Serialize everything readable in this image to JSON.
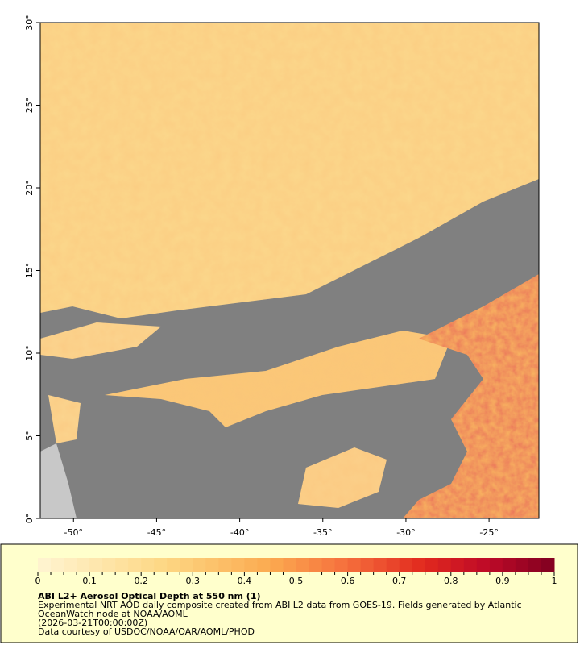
{
  "map": {
    "xlim": [
      -52,
      -22
    ],
    "ylim": [
      0,
      30
    ],
    "xticks": [
      {
        "value": -50,
        "label": "-50°"
      },
      {
        "value": -45,
        "label": "-45°"
      },
      {
        "value": -40,
        "label": "-40°"
      },
      {
        "value": -35,
        "label": "-35°"
      },
      {
        "value": -30,
        "label": "-30°"
      },
      {
        "value": -25,
        "label": "-25°"
      }
    ],
    "yticks": [
      {
        "value": 0,
        "label": "0°"
      },
      {
        "value": 5,
        "label": "5°"
      },
      {
        "value": 10,
        "label": "10°"
      },
      {
        "value": 15,
        "label": "15°"
      },
      {
        "value": 20,
        "label": "20°"
      },
      {
        "value": 25,
        "label": "25°"
      },
      {
        "value": 30,
        "label": "30°"
      }
    ]
  },
  "colorbar": {
    "range": [
      0,
      1
    ],
    "ticks": [
      0,
      0.1,
      0.2,
      0.3,
      0.4,
      0.5,
      0.6,
      0.7,
      0.8,
      0.9,
      1
    ]
  },
  "caption": {
    "title": "ABI L2+ Aerosol Optical Depth at 550 nm (1)",
    "lines": [
      "Experimental NRT AOD daily composite created from ABI L2 data from GOES-19. Fields generated by Atlantic",
      "OceanWatch node at NOAA/AOML",
      "(2026-03-21T00:00:00Z)",
      "Data courtesy of USDOC/NOAA/OAR/AOML/PHOD"
    ]
  }
}
